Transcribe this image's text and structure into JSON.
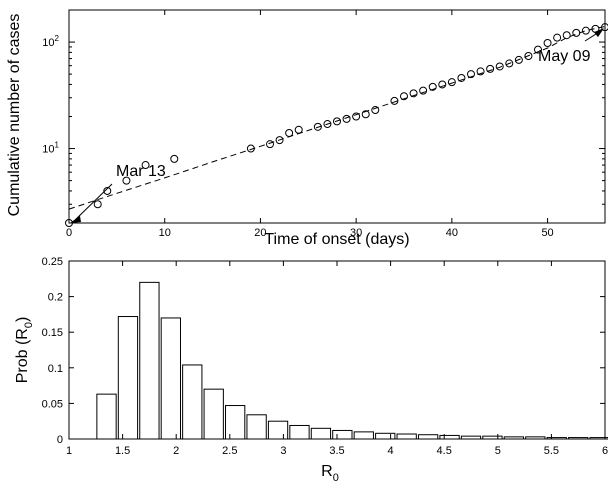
{
  "chart_data": [
    {
      "type": "scatter",
      "xlabel": "Time of onset (days)",
      "ylabel": "Cumulative number of cases",
      "xlim": [
        0,
        56
      ],
      "ylim": [
        2,
        200
      ],
      "yscale": "log",
      "grid": false,
      "xticks": [
        "0",
        "10",
        "20",
        "30",
        "40",
        "50"
      ],
      "xtick_values": [
        0,
        10,
        20,
        30,
        40,
        50
      ],
      "yticks": [
        {
          "base": "10",
          "exp": "1",
          "value": 10
        },
        {
          "base": "10",
          "exp": "2",
          "value": 100
        }
      ],
      "points": {
        "x": [
          0,
          3,
          4,
          6,
          8,
          11,
          19,
          21,
          22,
          23,
          24,
          26,
          27,
          28,
          29,
          30,
          31,
          32,
          34,
          35,
          36,
          37,
          38,
          39,
          40,
          41,
          42,
          43,
          44,
          45,
          46,
          47,
          48,
          49,
          50,
          51,
          52,
          53,
          54,
          55,
          56
        ],
        "y": [
          2,
          3,
          4,
          5,
          7,
          8,
          10,
          11,
          12,
          14,
          15,
          16,
          17,
          18,
          19,
          20,
          21,
          23,
          28,
          31,
          33,
          35,
          38,
          40,
          42,
          46,
          50,
          53,
          56,
          59,
          63,
          68,
          74,
          85,
          98,
          110,
          116,
          122,
          128,
          133,
          138
        ]
      },
      "fit_line": {
        "style": "dashed",
        "x": [
          0,
          5,
          10,
          15,
          20,
          25,
          30,
          35,
          40,
          45,
          50,
          52,
          54,
          56
        ],
        "y": [
          2.7,
          3.8,
          5.3,
          7.5,
          10.5,
          14.8,
          20.8,
          29.3,
          41.2,
          58.0,
          88.0,
          110.0,
          128.0,
          140.0
        ]
      },
      "annotations": [
        {
          "text": "Mar 13",
          "x": 0,
          "y": 2
        },
        {
          "text": "May 09",
          "x": 56,
          "y": 138
        }
      ]
    },
    {
      "type": "bar",
      "xlabel_main": "R",
      "xlabel_sub": "0",
      "ylabel_main": "Prob (R",
      "ylabel_sub": "0",
      "ylabel_close": ")",
      "xlim": [
        1,
        6
      ],
      "ylim": [
        0,
        0.25
      ],
      "grid": false,
      "bar_width": 0.18,
      "xticks": [
        "1",
        "1.5",
        "2",
        "2.5",
        "3",
        "3.5",
        "4",
        "4.5",
        "5",
        "5.5",
        "6"
      ],
      "xtick_values": [
        1,
        1.5,
        2,
        2.5,
        3,
        3.5,
        4,
        4.5,
        5,
        5.5,
        6
      ],
      "yticks": [
        "0",
        "0.05",
        "0.1",
        "0.15",
        "0.2",
        "0.25"
      ],
      "ytick_values": [
        0,
        0.05,
        0.1,
        0.15,
        0.2,
        0.25
      ],
      "x": [
        1.35,
        1.55,
        1.75,
        1.95,
        2.15,
        2.35,
        2.55,
        2.75,
        2.95,
        3.15,
        3.35,
        3.55,
        3.75,
        3.95,
        4.15,
        4.35,
        4.55,
        4.75,
        4.95,
        5.15,
        5.35,
        5.55,
        5.75,
        5.95
      ],
      "values": [
        0.063,
        0.172,
        0.22,
        0.17,
        0.104,
        0.07,
        0.047,
        0.034,
        0.025,
        0.019,
        0.015,
        0.012,
        0.01,
        0.008,
        0.007,
        0.006,
        0.005,
        0.004,
        0.004,
        0.003,
        0.003,
        0.002,
        0.002,
        0.002
      ]
    }
  ]
}
